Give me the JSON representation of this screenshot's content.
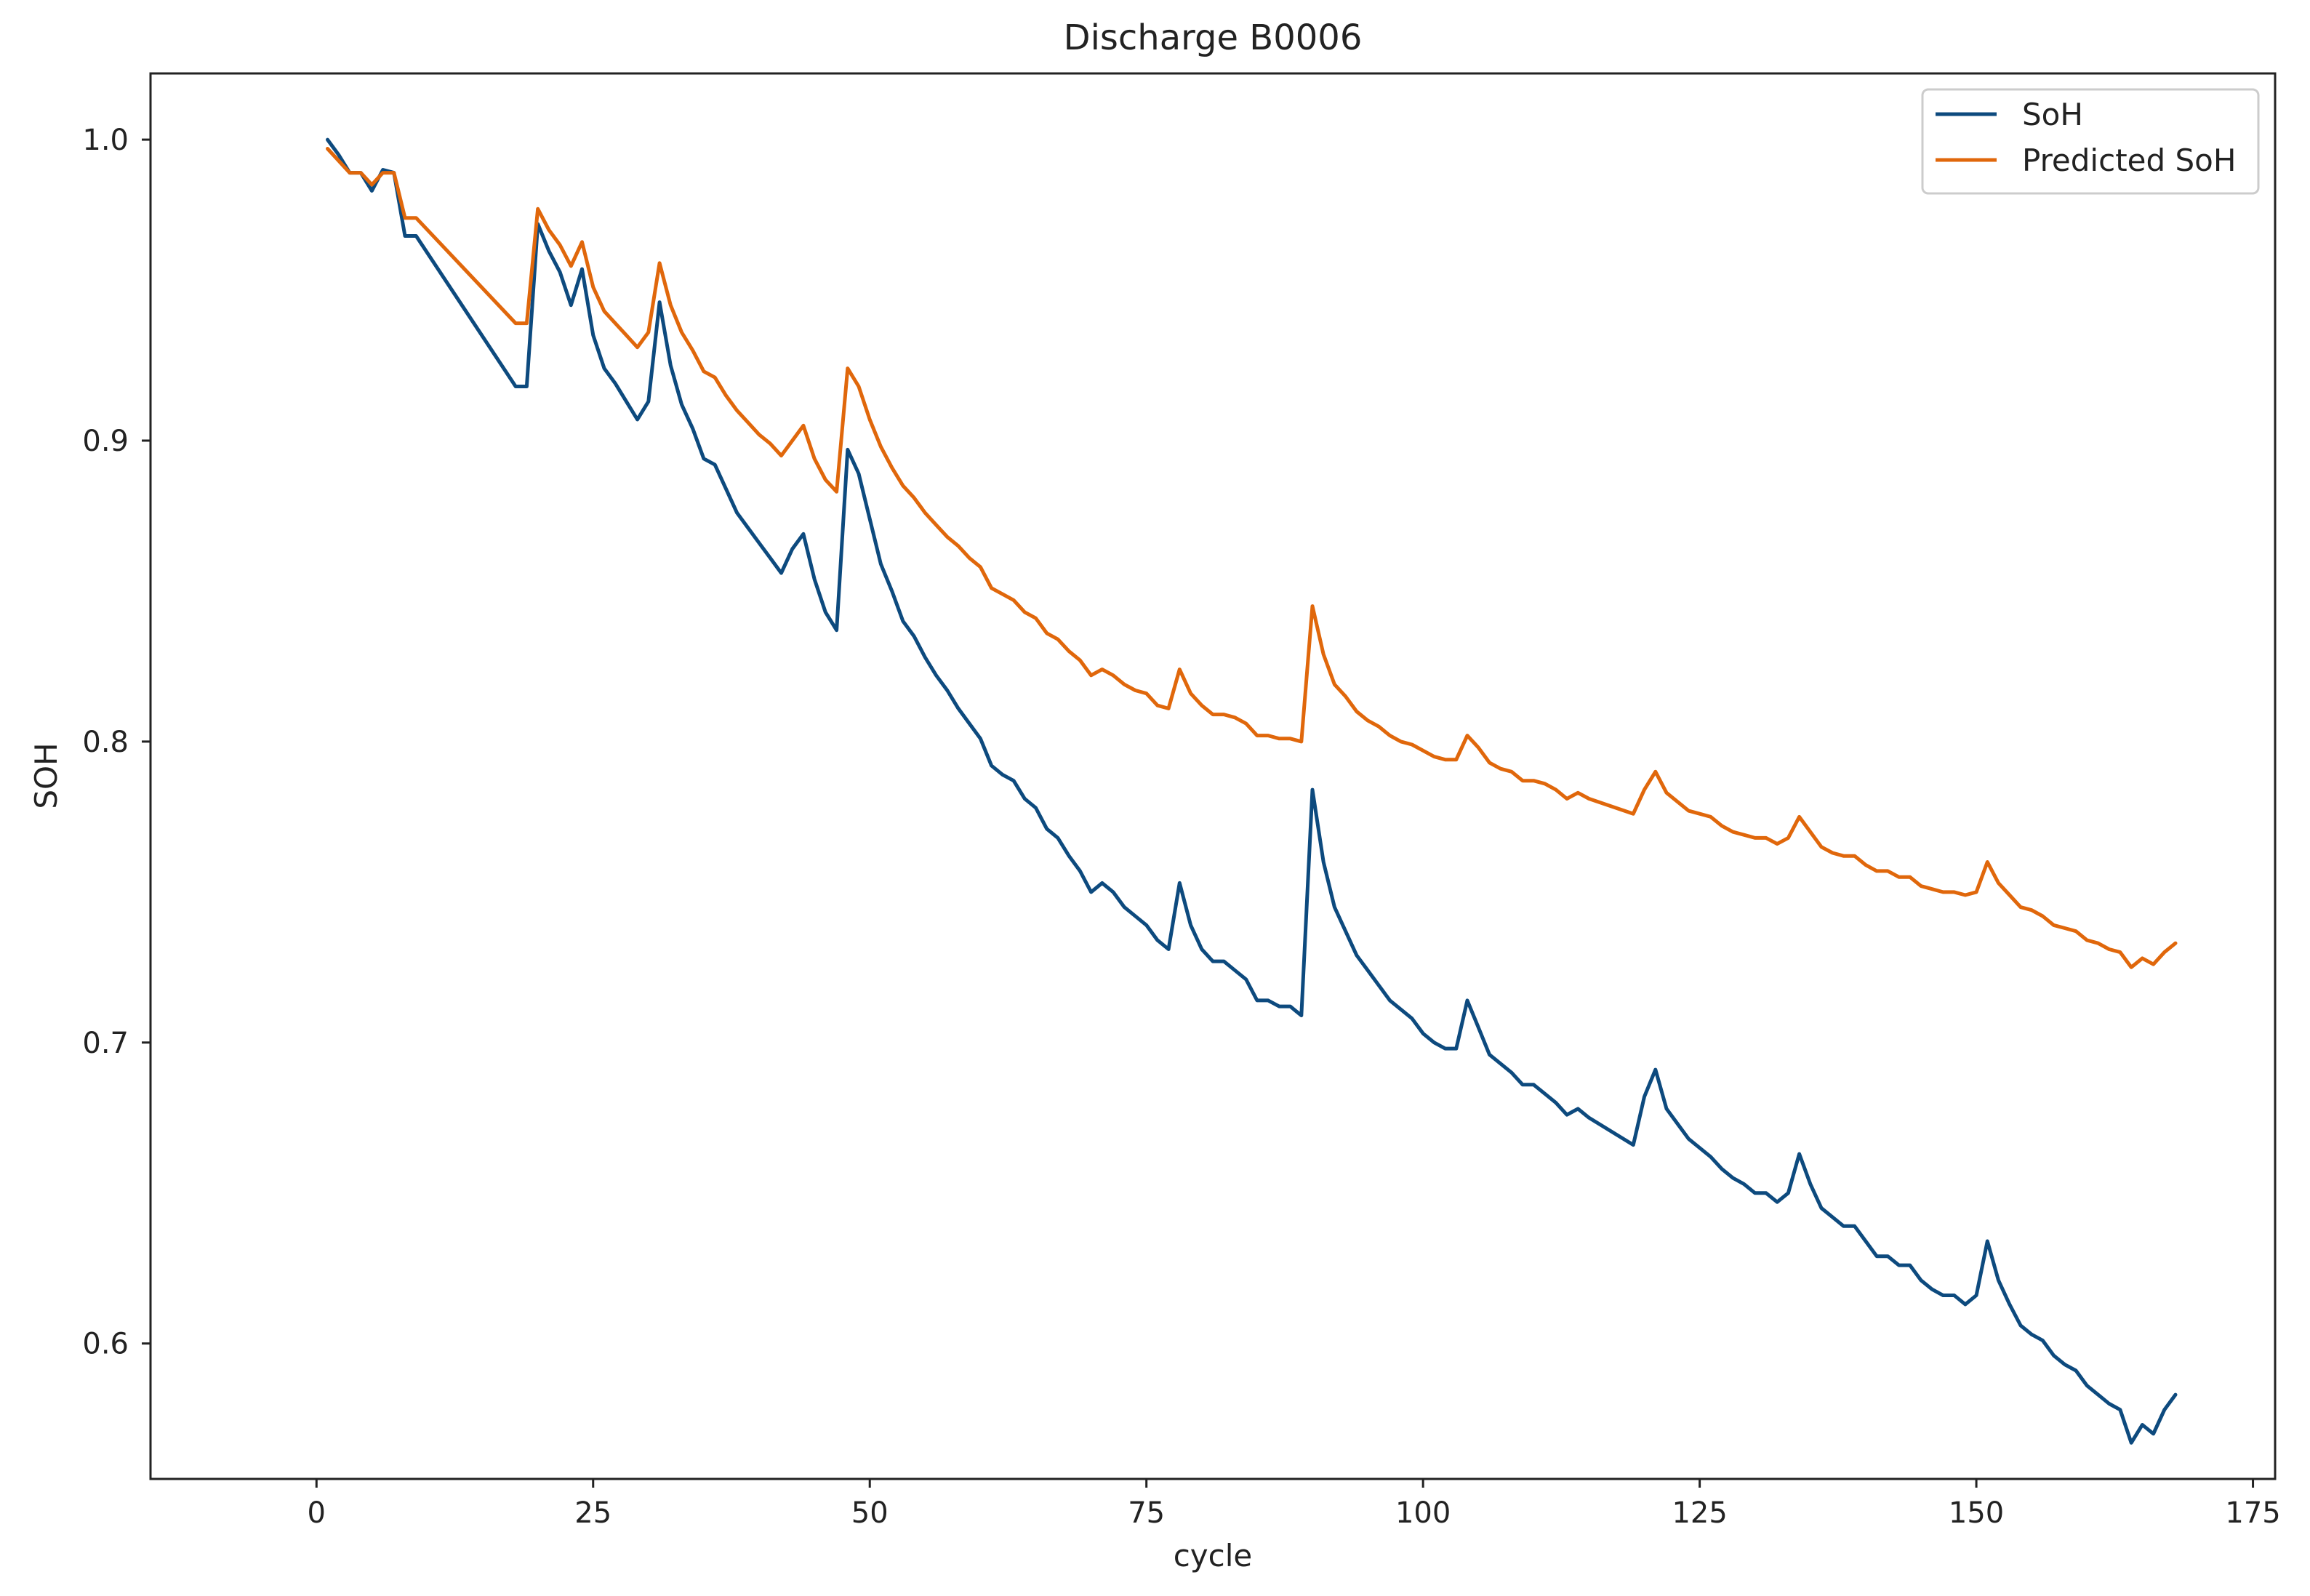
{
  "chart_data": {
    "type": "line",
    "title": "Discharge B0006",
    "xlabel": "cycle",
    "ylabel": "SOH",
    "xlim": [
      -15,
      177
    ],
    "ylim": [
      0.555,
      1.022
    ],
    "xticks": [
      0,
      25,
      50,
      75,
      100,
      125,
      150,
      175
    ],
    "yticks": [
      0.6,
      0.7,
      0.8,
      0.9,
      1.0
    ],
    "ytick_labels": [
      "0.6",
      "0.7",
      "0.8",
      "0.9",
      "1.0"
    ],
    "grid": false,
    "legend_position": "top-right",
    "series": [
      {
        "name": "SoH",
        "color": "#0d4a7e",
        "points": [
          [
            1,
            1.0
          ],
          [
            2,
            0.995
          ],
          [
            3,
            0.989
          ],
          [
            4,
            0.989
          ],
          [
            5,
            0.983
          ],
          [
            6,
            0.99
          ],
          [
            7,
            0.989
          ],
          [
            8,
            0.968
          ],
          [
            9,
            0.968
          ],
          [
            18,
            0.918
          ],
          [
            19,
            0.918
          ],
          [
            20,
            0.972
          ],
          [
            21,
            0.963
          ],
          [
            22,
            0.956
          ],
          [
            23,
            0.945
          ],
          [
            24,
            0.957
          ],
          [
            25,
            0.935
          ],
          [
            26,
            0.924
          ],
          [
            27,
            0.919
          ],
          [
            28,
            0.913
          ],
          [
            29,
            0.907
          ],
          [
            30,
            0.913
          ],
          [
            31,
            0.946
          ],
          [
            32,
            0.925
          ],
          [
            33,
            0.912
          ],
          [
            34,
            0.904
          ],
          [
            35,
            0.894
          ],
          [
            36,
            0.892
          ],
          [
            37,
            0.884
          ],
          [
            38,
            0.876
          ],
          [
            39,
            0.871
          ],
          [
            40,
            0.866
          ],
          [
            41,
            0.861
          ],
          [
            42,
            0.856
          ],
          [
            43,
            0.864
          ],
          [
            44,
            0.869
          ],
          [
            45,
            0.854
          ],
          [
            46,
            0.843
          ],
          [
            47,
            0.837
          ],
          [
            48,
            0.897
          ],
          [
            49,
            0.889
          ],
          [
            50,
            0.874
          ],
          [
            51,
            0.859
          ],
          [
            52,
            0.85
          ],
          [
            53,
            0.84
          ],
          [
            54,
            0.835
          ],
          [
            55,
            0.828
          ],
          [
            56,
            0.822
          ],
          [
            57,
            0.817
          ],
          [
            58,
            0.811
          ],
          [
            59,
            0.806
          ],
          [
            60,
            0.801
          ],
          [
            61,
            0.792
          ],
          [
            62,
            0.789
          ],
          [
            63,
            0.787
          ],
          [
            64,
            0.781
          ],
          [
            65,
            0.778
          ],
          [
            66,
            0.771
          ],
          [
            67,
            0.768
          ],
          [
            68,
            0.762
          ],
          [
            69,
            0.757
          ],
          [
            70,
            0.75
          ],
          [
            71,
            0.753
          ],
          [
            72,
            0.75
          ],
          [
            73,
            0.745
          ],
          [
            74,
            0.742
          ],
          [
            75,
            0.739
          ],
          [
            76,
            0.734
          ],
          [
            77,
            0.731
          ],
          [
            78,
            0.753
          ],
          [
            79,
            0.739
          ],
          [
            80,
            0.731
          ],
          [
            81,
            0.727
          ],
          [
            82,
            0.727
          ],
          [
            83,
            0.724
          ],
          [
            84,
            0.721
          ],
          [
            85,
            0.714
          ],
          [
            86,
            0.714
          ],
          [
            87,
            0.712
          ],
          [
            88,
            0.712
          ],
          [
            89,
            0.709
          ],
          [
            90,
            0.784
          ],
          [
            91,
            0.76
          ],
          [
            92,
            0.745
          ],
          [
            93,
            0.737
          ],
          [
            94,
            0.729
          ],
          [
            95,
            0.724
          ],
          [
            96,
            0.719
          ],
          [
            97,
            0.714
          ],
          [
            98,
            0.711
          ],
          [
            99,
            0.708
          ],
          [
            100,
            0.703
          ],
          [
            101,
            0.7
          ],
          [
            102,
            0.698
          ],
          [
            103,
            0.698
          ],
          [
            104,
            0.714
          ],
          [
            105,
            0.705
          ],
          [
            106,
            0.696
          ],
          [
            107,
            0.693
          ],
          [
            108,
            0.69
          ],
          [
            109,
            0.686
          ],
          [
            110,
            0.686
          ],
          [
            111,
            0.683
          ],
          [
            112,
            0.68
          ],
          [
            113,
            0.676
          ],
          [
            114,
            0.678
          ],
          [
            115,
            0.675
          ],
          [
            119,
            0.666
          ],
          [
            120,
            0.682
          ],
          [
            121,
            0.691
          ],
          [
            122,
            0.678
          ],
          [
            123,
            0.673
          ],
          [
            124,
            0.668
          ],
          [
            125,
            0.665
          ],
          [
            126,
            0.662
          ],
          [
            127,
            0.658
          ],
          [
            128,
            0.655
          ],
          [
            129,
            0.653
          ],
          [
            130,
            0.65
          ],
          [
            131,
            0.65
          ],
          [
            132,
            0.647
          ],
          [
            133,
            0.65
          ],
          [
            134,
            0.663
          ],
          [
            135,
            0.653
          ],
          [
            136,
            0.645
          ],
          [
            137,
            0.642
          ],
          [
            138,
            0.639
          ],
          [
            139,
            0.639
          ],
          [
            140,
            0.634
          ],
          [
            141,
            0.629
          ],
          [
            142,
            0.629
          ],
          [
            143,
            0.626
          ],
          [
            144,
            0.626
          ],
          [
            145,
            0.621
          ],
          [
            146,
            0.618
          ],
          [
            147,
            0.616
          ],
          [
            148,
            0.616
          ],
          [
            149,
            0.613
          ],
          [
            150,
            0.616
          ],
          [
            151,
            0.634
          ],
          [
            152,
            0.621
          ],
          [
            153,
            0.613
          ],
          [
            154,
            0.606
          ],
          [
            155,
            0.603
          ],
          [
            156,
            0.601
          ],
          [
            157,
            0.596
          ],
          [
            158,
            0.593
          ],
          [
            159,
            0.591
          ],
          [
            160,
            0.586
          ],
          [
            161,
            0.583
          ],
          [
            162,
            0.58
          ],
          [
            163,
            0.578
          ],
          [
            164,
            0.567
          ],
          [
            165,
            0.573
          ],
          [
            166,
            0.57
          ],
          [
            167,
            0.578
          ],
          [
            168,
            0.583
          ]
        ]
      },
      {
        "name": "Predicted SoH",
        "color": "#e0670b",
        "points": [
          [
            1,
            0.997
          ],
          [
            2,
            0.993
          ],
          [
            3,
            0.989
          ],
          [
            4,
            0.989
          ],
          [
            5,
            0.985
          ],
          [
            6,
            0.989
          ],
          [
            7,
            0.989
          ],
          [
            8,
            0.974
          ],
          [
            9,
            0.974
          ],
          [
            18,
            0.939
          ],
          [
            19,
            0.939
          ],
          [
            20,
            0.977
          ],
          [
            21,
            0.97
          ],
          [
            22,
            0.965
          ],
          [
            23,
            0.958
          ],
          [
            24,
            0.966
          ],
          [
            25,
            0.951
          ],
          [
            26,
            0.943
          ],
          [
            27,
            0.939
          ],
          [
            28,
            0.935
          ],
          [
            29,
            0.931
          ],
          [
            30,
            0.936
          ],
          [
            31,
            0.959
          ],
          [
            32,
            0.945
          ],
          [
            33,
            0.936
          ],
          [
            34,
            0.93
          ],
          [
            35,
            0.923
          ],
          [
            36,
            0.921
          ],
          [
            37,
            0.915
          ],
          [
            38,
            0.91
          ],
          [
            39,
            0.906
          ],
          [
            40,
            0.902
          ],
          [
            41,
            0.899
          ],
          [
            42,
            0.895
          ],
          [
            43,
            0.9
          ],
          [
            44,
            0.905
          ],
          [
            45,
            0.894
          ],
          [
            46,
            0.887
          ],
          [
            47,
            0.883
          ],
          [
            48,
            0.924
          ],
          [
            49,
            0.918
          ],
          [
            50,
            0.907
          ],
          [
            51,
            0.898
          ],
          [
            52,
            0.891
          ],
          [
            53,
            0.885
          ],
          [
            54,
            0.881
          ],
          [
            55,
            0.876
          ],
          [
            56,
            0.872
          ],
          [
            57,
            0.868
          ],
          [
            58,
            0.865
          ],
          [
            59,
            0.861
          ],
          [
            60,
            0.858
          ],
          [
            61,
            0.851
          ],
          [
            62,
            0.849
          ],
          [
            63,
            0.847
          ],
          [
            64,
            0.843
          ],
          [
            65,
            0.841
          ],
          [
            66,
            0.836
          ],
          [
            67,
            0.834
          ],
          [
            68,
            0.83
          ],
          [
            69,
            0.827
          ],
          [
            70,
            0.822
          ],
          [
            71,
            0.824
          ],
          [
            72,
            0.822
          ],
          [
            73,
            0.819
          ],
          [
            74,
            0.817
          ],
          [
            75,
            0.816
          ],
          [
            76,
            0.812
          ],
          [
            77,
            0.811
          ],
          [
            78,
            0.824
          ],
          [
            79,
            0.816
          ],
          [
            80,
            0.812
          ],
          [
            81,
            0.809
          ],
          [
            82,
            0.809
          ],
          [
            83,
            0.808
          ],
          [
            84,
            0.806
          ],
          [
            85,
            0.802
          ],
          [
            86,
            0.802
          ],
          [
            87,
            0.801
          ],
          [
            88,
            0.801
          ],
          [
            89,
            0.8
          ],
          [
            90,
            0.845
          ],
          [
            91,
            0.829
          ],
          [
            92,
            0.819
          ],
          [
            93,
            0.815
          ],
          [
            94,
            0.81
          ],
          [
            95,
            0.807
          ],
          [
            96,
            0.805
          ],
          [
            97,
            0.802
          ],
          [
            98,
            0.8
          ],
          [
            99,
            0.799
          ],
          [
            100,
            0.797
          ],
          [
            101,
            0.795
          ],
          [
            102,
            0.794
          ],
          [
            103,
            0.794
          ],
          [
            104,
            0.802
          ],
          [
            105,
            0.798
          ],
          [
            106,
            0.793
          ],
          [
            107,
            0.791
          ],
          [
            108,
            0.79
          ],
          [
            109,
            0.787
          ],
          [
            110,
            0.787
          ],
          [
            111,
            0.786
          ],
          [
            112,
            0.784
          ],
          [
            113,
            0.781
          ],
          [
            114,
            0.783
          ],
          [
            115,
            0.781
          ],
          [
            119,
            0.776
          ],
          [
            120,
            0.784
          ],
          [
            121,
            0.79
          ],
          [
            122,
            0.783
          ],
          [
            123,
            0.78
          ],
          [
            124,
            0.777
          ],
          [
            125,
            0.776
          ],
          [
            126,
            0.775
          ],
          [
            127,
            0.772
          ],
          [
            128,
            0.77
          ],
          [
            129,
            0.769
          ],
          [
            130,
            0.768
          ],
          [
            131,
            0.768
          ],
          [
            132,
            0.766
          ],
          [
            133,
            0.768
          ],
          [
            134,
            0.775
          ],
          [
            135,
            0.77
          ],
          [
            136,
            0.765
          ],
          [
            137,
            0.763
          ],
          [
            138,
            0.762
          ],
          [
            139,
            0.762
          ],
          [
            140,
            0.759
          ],
          [
            141,
            0.757
          ],
          [
            142,
            0.757
          ],
          [
            143,
            0.755
          ],
          [
            144,
            0.755
          ],
          [
            145,
            0.752
          ],
          [
            146,
            0.751
          ],
          [
            147,
            0.75
          ],
          [
            148,
            0.75
          ],
          [
            149,
            0.749
          ],
          [
            150,
            0.75
          ],
          [
            151,
            0.76
          ],
          [
            152,
            0.753
          ],
          [
            153,
            0.749
          ],
          [
            154,
            0.745
          ],
          [
            155,
            0.744
          ],
          [
            156,
            0.742
          ],
          [
            157,
            0.739
          ],
          [
            158,
            0.738
          ],
          [
            159,
            0.737
          ],
          [
            160,
            0.734
          ],
          [
            161,
            0.733
          ],
          [
            162,
            0.731
          ],
          [
            163,
            0.73
          ],
          [
            164,
            0.725
          ],
          [
            165,
            0.728
          ],
          [
            166,
            0.726
          ],
          [
            167,
            0.73
          ],
          [
            168,
            0.733
          ]
        ]
      }
    ]
  }
}
